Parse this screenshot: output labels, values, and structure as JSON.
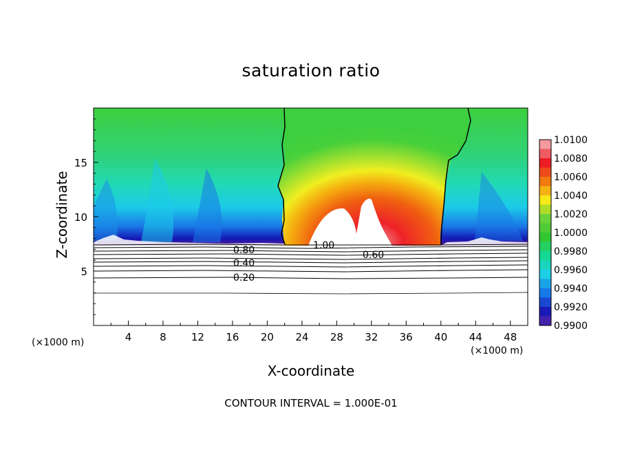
{
  "chart_data": {
    "type": "heatmap",
    "title": "saturation ratio",
    "xlabel": "X-coordinate",
    "ylabel": "Z-coordinate",
    "x_unit_label": "(×1000 m)",
    "xlim": [
      0,
      50
    ],
    "ylim": [
      0,
      20
    ],
    "x_ticks": [
      4,
      8,
      12,
      16,
      20,
      24,
      28,
      32,
      36,
      40,
      44,
      48
    ],
    "y_ticks": [
      5,
      10,
      15
    ],
    "colorbar": {
      "labels": [
        "1.0100",
        "1.0080",
        "1.0060",
        "1.0040",
        "1.0020",
        "1.0000",
        "0.9980",
        "0.9960",
        "0.9940",
        "0.9920",
        "0.9900"
      ],
      "colors": [
        "#f29aa0",
        "#ec1c24",
        "#f07a10",
        "#f7e818",
        "#6ad23a",
        "#33c633",
        "#16d895",
        "#1ecfe6",
        "#1778e8",
        "#1a1ab8",
        "#6c2aa0"
      ]
    },
    "contour_labels": [
      "1.00",
      "0.80",
      "0.60",
      "0.40",
      "0.20"
    ],
    "footer": "CONTOUR INTERVAL = 1.000E-01"
  }
}
